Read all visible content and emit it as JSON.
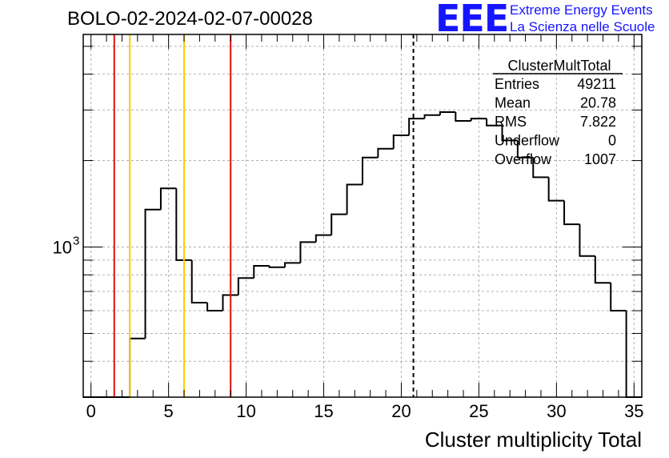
{
  "header": {
    "title": "BOLO-02-2024-02-07-00028",
    "logo_text": "EEE",
    "logo_line1": "Extreme Energy Events",
    "logo_line2": "La Scienza nelle Scuole"
  },
  "colors": {
    "histogram": "#000000",
    "red_line": "#e01010",
    "yellow_line": "#ffcc00",
    "grid": "#b0b0b0",
    "logo": "#1515ff"
  },
  "stats_box": {
    "name": "ClusterMultTotal",
    "rows": [
      {
        "label": "Entries",
        "value": "49211"
      },
      {
        "label": "Mean",
        "value": "20.78"
      },
      {
        "label": "RMS",
        "value": "7.822"
      },
      {
        "label": "Underflow",
        "value": "0"
      },
      {
        "label": "Overflow",
        "value": "1007"
      }
    ]
  },
  "chart_data": {
    "type": "histogram",
    "xlabel": "Cluster multiplicity Total",
    "ylabel": "",
    "xlim": [
      -0.5,
      35.5
    ],
    "ylim": [
      300,
      5500
    ],
    "yscale": "log",
    "grid": true,
    "x_ticks": [
      0,
      5,
      10,
      15,
      20,
      25,
      30,
      35
    ],
    "y_tick_label": {
      "base": "10",
      "exp": "3",
      "value": 1000
    },
    "bin_edges_start": -0.5,
    "bin_width": 1,
    "values": [
      0,
      0,
      0,
      480,
      1350,
      1600,
      900,
      640,
      600,
      680,
      780,
      860,
      850,
      880,
      1040,
      1100,
      1300,
      1650,
      2050,
      2200,
      2450,
      2800,
      2880,
      2950,
      2750,
      2800,
      2650,
      2350,
      2050,
      1750,
      1450,
      1200,
      930,
      750,
      600,
      0
    ],
    "vertical_lines": [
      {
        "x": 1.5,
        "color": "red",
        "style": "solid"
      },
      {
        "x": 2.5,
        "color": "yellow",
        "style": "solid"
      },
      {
        "x": 6.0,
        "color": "yellow",
        "style": "solid"
      },
      {
        "x": 9.0,
        "color": "red",
        "style": "solid"
      },
      {
        "x": 20.78,
        "color": "black",
        "style": "dashed"
      }
    ]
  }
}
